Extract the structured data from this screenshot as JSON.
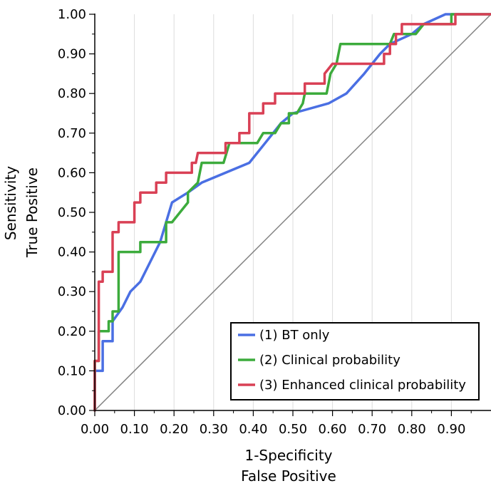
{
  "chart_data": {
    "type": "line",
    "title": "",
    "xlabel": [
      "1-Specificity",
      "False Positive"
    ],
    "ylabel": [
      "Sensitivity",
      "True Positive"
    ],
    "xlim": [
      0,
      1
    ],
    "ylim": [
      0,
      1
    ],
    "x_ticks": [
      "0.00",
      "0.10",
      "0.20",
      "0.30",
      "0.40",
      "0.50",
      "0.60",
      "0.70",
      "0.80",
      "0.90"
    ],
    "y_ticks": [
      "0.00",
      "0.10",
      "0.20",
      "0.30",
      "0.40",
      "0.50",
      "0.60",
      "0.70",
      "0.80",
      "0.90",
      "1.00"
    ],
    "grid": "vertical",
    "legend_position": "bottom-right",
    "reference_line": {
      "color": "#808080",
      "points": [
        [
          0,
          0
        ],
        [
          1,
          1
        ]
      ]
    },
    "series": [
      {
        "name": "(1) BT only",
        "color": "#4a6fe3",
        "points": [
          [
            0,
            0
          ],
          [
            0,
            0.1
          ],
          [
            0.02,
            0.1
          ],
          [
            0.02,
            0.175
          ],
          [
            0.045,
            0.175
          ],
          [
            0.045,
            0.225
          ],
          [
            0.07,
            0.26
          ],
          [
            0.09,
            0.3
          ],
          [
            0.115,
            0.325
          ],
          [
            0.14,
            0.375
          ],
          [
            0.165,
            0.425
          ],
          [
            0.195,
            0.525
          ],
          [
            0.235,
            0.55
          ],
          [
            0.27,
            0.575
          ],
          [
            0.39,
            0.625
          ],
          [
            0.43,
            0.675
          ],
          [
            0.47,
            0.725
          ],
          [
            0.5,
            0.75
          ],
          [
            0.59,
            0.775
          ],
          [
            0.635,
            0.8
          ],
          [
            0.68,
            0.85
          ],
          [
            0.72,
            0.9
          ],
          [
            0.745,
            0.925
          ],
          [
            0.8,
            0.95
          ],
          [
            0.83,
            0.975
          ],
          [
            0.885,
            1.0
          ],
          [
            1.0,
            1.0
          ]
        ]
      },
      {
        "name": "(2) Clinical probability",
        "color": "#3cab3c",
        "points": [
          [
            0,
            0
          ],
          [
            0,
            0.125
          ],
          [
            0.01,
            0.125
          ],
          [
            0.01,
            0.2
          ],
          [
            0.035,
            0.2
          ],
          [
            0.035,
            0.225
          ],
          [
            0.045,
            0.225
          ],
          [
            0.045,
            0.25
          ],
          [
            0.06,
            0.25
          ],
          [
            0.06,
            0.4
          ],
          [
            0.115,
            0.4
          ],
          [
            0.115,
            0.425
          ],
          [
            0.18,
            0.425
          ],
          [
            0.18,
            0.475
          ],
          [
            0.195,
            0.475
          ],
          [
            0.235,
            0.525
          ],
          [
            0.235,
            0.55
          ],
          [
            0.26,
            0.575
          ],
          [
            0.27,
            0.625
          ],
          [
            0.325,
            0.625
          ],
          [
            0.34,
            0.675
          ],
          [
            0.41,
            0.675
          ],
          [
            0.425,
            0.7
          ],
          [
            0.455,
            0.7
          ],
          [
            0.47,
            0.725
          ],
          [
            0.49,
            0.725
          ],
          [
            0.49,
            0.75
          ],
          [
            0.51,
            0.75
          ],
          [
            0.525,
            0.775
          ],
          [
            0.53,
            0.8
          ],
          [
            0.585,
            0.8
          ],
          [
            0.595,
            0.85
          ],
          [
            0.61,
            0.875
          ],
          [
            0.62,
            0.925
          ],
          [
            0.745,
            0.925
          ],
          [
            0.755,
            0.95
          ],
          [
            0.81,
            0.95
          ],
          [
            0.83,
            0.975
          ],
          [
            0.9,
            0.975
          ],
          [
            0.9,
            1.0
          ],
          [
            1.0,
            1.0
          ]
        ]
      },
      {
        "name": "(3) Enhanced clinical probability",
        "color": "#d94055",
        "points": [
          [
            0,
            0
          ],
          [
            0,
            0.125
          ],
          [
            0.01,
            0.125
          ],
          [
            0.01,
            0.325
          ],
          [
            0.02,
            0.325
          ],
          [
            0.02,
            0.35
          ],
          [
            0.045,
            0.35
          ],
          [
            0.045,
            0.45
          ],
          [
            0.06,
            0.45
          ],
          [
            0.06,
            0.475
          ],
          [
            0.1,
            0.475
          ],
          [
            0.1,
            0.525
          ],
          [
            0.115,
            0.525
          ],
          [
            0.115,
            0.55
          ],
          [
            0.155,
            0.55
          ],
          [
            0.155,
            0.575
          ],
          [
            0.18,
            0.575
          ],
          [
            0.18,
            0.6
          ],
          [
            0.245,
            0.6
          ],
          [
            0.245,
            0.625
          ],
          [
            0.255,
            0.625
          ],
          [
            0.26,
            0.65
          ],
          [
            0.33,
            0.65
          ],
          [
            0.33,
            0.675
          ],
          [
            0.365,
            0.675
          ],
          [
            0.365,
            0.7
          ],
          [
            0.39,
            0.7
          ],
          [
            0.39,
            0.75
          ],
          [
            0.425,
            0.75
          ],
          [
            0.425,
            0.775
          ],
          [
            0.455,
            0.775
          ],
          [
            0.455,
            0.8
          ],
          [
            0.53,
            0.8
          ],
          [
            0.53,
            0.825
          ],
          [
            0.58,
            0.825
          ],
          [
            0.58,
            0.85
          ],
          [
            0.6,
            0.875
          ],
          [
            0.73,
            0.875
          ],
          [
            0.73,
            0.9
          ],
          [
            0.745,
            0.9
          ],
          [
            0.745,
            0.925
          ],
          [
            0.76,
            0.925
          ],
          [
            0.76,
            0.95
          ],
          [
            0.775,
            0.95
          ],
          [
            0.775,
            0.975
          ],
          [
            0.91,
            0.975
          ],
          [
            0.91,
            1.0
          ],
          [
            1.0,
            1.0
          ]
        ]
      }
    ]
  }
}
